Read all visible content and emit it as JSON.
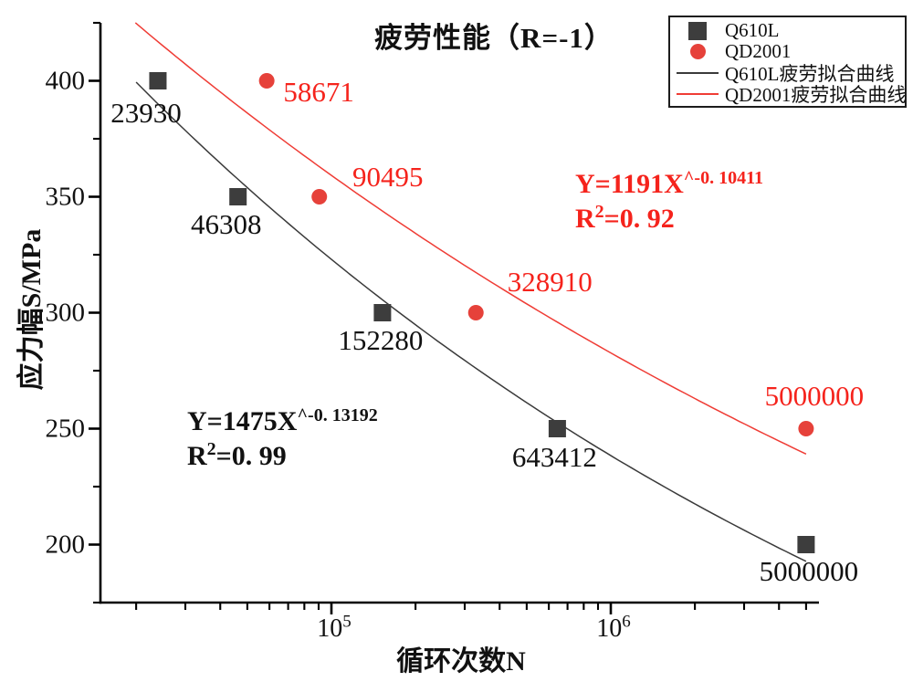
{
  "title": "疲劳性能（R=-1）",
  "colors": {
    "red_text": "#f5231c",
    "red_marker": "#e6413a",
    "red_line": "#ef3c35",
    "dark_marker": "#3d3d3d",
    "dark_line": "#3a3a3a",
    "black_text": "#111111",
    "axis": "#000000"
  },
  "legend": {
    "items": [
      {
        "label": "Q610L",
        "marker": "square",
        "color_key": "dark_marker"
      },
      {
        "label": "QD2001",
        "marker": "circle",
        "color_key": "red_marker"
      },
      {
        "label": "Q610L疲劳拟合曲线",
        "marker": "line",
        "color_key": "dark_line"
      },
      {
        "label": "QD2001疲劳拟合曲线",
        "marker": "line",
        "color_key": "red_line"
      }
    ]
  },
  "equations": {
    "q610l": {
      "formula_base": "Y=1475X",
      "formula_exp": "^-0. 13192",
      "r_base": "R",
      "r_exp": "2",
      "r_value": "=0. 99"
    },
    "qd2001": {
      "formula_base": "Y=1191X",
      "formula_exp": "^-0. 10411",
      "r_base": "R",
      "r_exp": "2",
      "r_value": "=0. 92"
    }
  },
  "chart_data": {
    "type": "scatter",
    "title": "疲劳性能（R=-1）",
    "xlabel": "循环次数N",
    "ylabel": "应力幅S/MPa",
    "x_scale": "log",
    "xlim": [
      14900,
      5560000
    ],
    "ylim": [
      175,
      425
    ],
    "grid": false,
    "legend_position": "top-right",
    "yticks": [
      200,
      250,
      300,
      350,
      400
    ],
    "yticks_minor": [
      175,
      225,
      275,
      325,
      375,
      425
    ],
    "xticks": [
      {
        "base": "10",
        "exp": "5",
        "value": 100000
      },
      {
        "base": "10",
        "exp": "6",
        "value": 1000000
      }
    ],
    "series": [
      {
        "name": "Q610L",
        "marker": "square",
        "color_key": "dark_marker",
        "label_color_key": "black_text",
        "points": [
          {
            "x": 23930,
            "y": 400,
            "label": "23930",
            "dx": -13,
            "dy": 35
          },
          {
            "x": 46308,
            "y": 350,
            "label": "46308",
            "dx": -13,
            "dy": 30
          },
          {
            "x": 152280,
            "y": 300,
            "label": "152280",
            "dx": -2,
            "dy": 30
          },
          {
            "x": 643412,
            "y": 250,
            "label": "643412",
            "dx": -3,
            "dy": 31
          },
          {
            "x": 5000000,
            "y": 200,
            "label": "5000000",
            "dx": 3,
            "dy": 29
          }
        ]
      },
      {
        "name": "QD2001",
        "marker": "circle",
        "color_key": "red_marker",
        "label_color_key": "red_text",
        "points": [
          {
            "x": 58671,
            "y": 400,
            "label": "58671",
            "dx": 57,
            "dy": 12
          },
          {
            "x": 90495,
            "y": 350,
            "label": "90495",
            "dx": 75,
            "dy": -22
          },
          {
            "x": 328910,
            "y": 300,
            "label": "328910",
            "dx": 81,
            "dy": -34
          },
          {
            "x": 5000000,
            "y": 250,
            "label": "5000000",
            "dx": 9,
            "dy": -36
          }
        ]
      }
    ],
    "fits": [
      {
        "name": "Q610L疲劳拟合曲线",
        "color_key": "dark_line",
        "coef": 1475,
        "exp": -0.13192,
        "x_start": 20000,
        "x_end": 5000000,
        "r2": 0.99
      },
      {
        "name": "QD2001疲劳拟合曲线",
        "color_key": "red_line",
        "coef": 1191,
        "exp": -0.10411,
        "x_start": 19870,
        "x_end": 5000000,
        "r2": 0.92
      }
    ]
  }
}
